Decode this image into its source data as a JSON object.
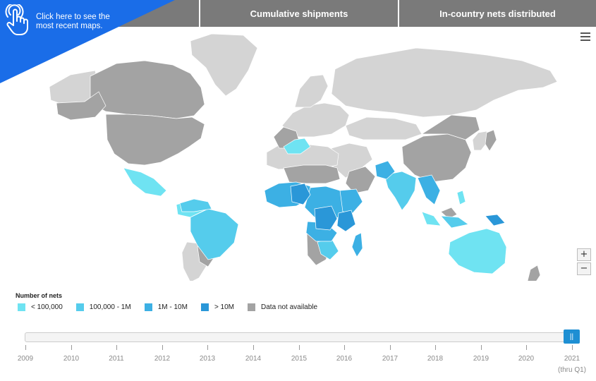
{
  "promo": {
    "text": "Click here to see the most recent maps.",
    "icon": "hand-pointer-icon",
    "color": "#1a6de8"
  },
  "tabs": [
    {
      "label": "Cumulative shipments"
    },
    {
      "label": "In-country nets distributed"
    }
  ],
  "menu": {
    "icon": "hamburger-menu-icon"
  },
  "zoom": {
    "in_label": "+",
    "out_label": "−"
  },
  "legend": {
    "title": "Number of nets",
    "items": [
      {
        "label": "< 100,000",
        "color": "#6fe3f2"
      },
      {
        "label": "100,000 - 1M",
        "color": "#55ccec"
      },
      {
        "label": "1M - 10M",
        "color": "#3cb0e4"
      },
      {
        "label": "> 10M",
        "color": "#2a97d8"
      },
      {
        "label": "Data not available",
        "color": "#a3a3a3"
      }
    ]
  },
  "map_colors": {
    "base_land": "#d4d4d4",
    "no_data": "#a3a3a3"
  },
  "timeline": {
    "years": [
      "2009",
      "2010",
      "2011",
      "2012",
      "2013",
      "2014",
      "2015",
      "2016",
      "2017",
      "2018",
      "2019",
      "2020",
      "2021"
    ],
    "last_sub": "(thru Q1)",
    "selected": "2021",
    "thumb_label": "||"
  }
}
